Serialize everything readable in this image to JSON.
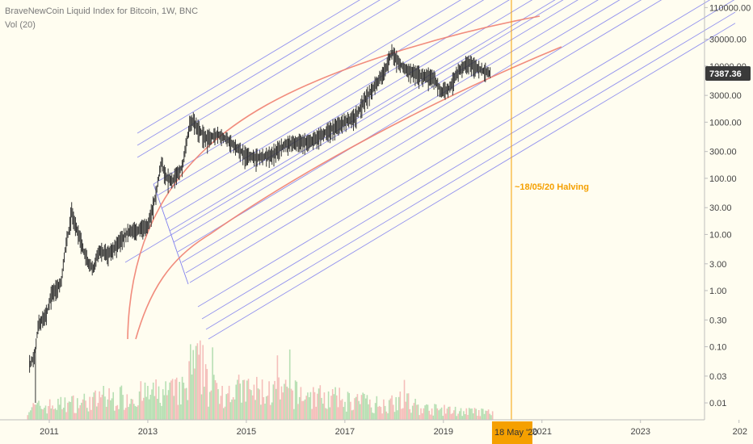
{
  "header": {
    "title": "BraveNewCoin Liquid Index for Bitcoin, 1W, BNC",
    "volume_label": "Vol (20)"
  },
  "colors": {
    "background": "#fffdf0",
    "fan_line": "#8080ee",
    "arc": "#f08070",
    "halving_line": "#f5a000",
    "price_tag_bg": "#3a3a3a",
    "date_tag_bg": "#f5a000",
    "volume_up": "#9fd49f",
    "volume_down": "#f2a8a8",
    "candle": "#333333"
  },
  "chart_data": {
    "type": "line",
    "title": "BraveNewCoin Liquid Index for Bitcoin, 1W, BNC",
    "y_scale": "log",
    "ylim": [
      0.005,
      150000
    ],
    "xlim": [
      2010.0,
      2024.3
    ],
    "y_ticks": [
      "110000.00",
      "30000.00",
      "10000.00",
      "3000.00",
      "1000.00",
      "300.00",
      "100.00",
      "30.00",
      "10.00",
      "3.00",
      "1.00",
      "0.30",
      "0.10",
      "0.03",
      "0.01"
    ],
    "x_ticks": [
      "2011",
      "2013",
      "2015",
      "2017",
      "2019",
      "2021",
      "2023",
      "202"
    ],
    "last_price": "7387.36",
    "series": [
      {
        "x": [
          2010.55,
          2010.62,
          2010.7,
          2010.78,
          2010.86,
          2010.95,
          2011.05,
          2011.15,
          2011.25,
          2011.33,
          2011.42,
          2011.45,
          2011.5,
          2011.6,
          2011.7,
          2011.8,
          2011.9,
          2012.0,
          2012.2,
          2012.4,
          2012.6,
          2012.8,
          2013.0,
          2013.15,
          2013.28,
          2013.35,
          2013.5,
          2013.7,
          2013.85,
          2013.92,
          2014.0,
          2014.2,
          2014.4,
          2014.6,
          2014.8,
          2015.0,
          2015.2,
          2015.5,
          2015.8,
          2016.0,
          2016.3,
          2016.6,
          2016.9,
          2017.0,
          2017.2,
          2017.4,
          2017.6,
          2017.8,
          2017.96,
          2018.1,
          2018.3,
          2018.6,
          2018.8,
          2018.95,
          2019.1,
          2019.3,
          2019.5,
          2019.6,
          2019.75,
          2019.9,
          2020.0
        ],
        "y": [
          0.06,
          0.05,
          0.07,
          0.25,
          0.3,
          0.4,
          0.9,
          1.1,
          1.5,
          6,
          15,
          28,
          16,
          10,
          5,
          3,
          2.5,
          5,
          4.5,
          7,
          11,
          12,
          14,
          45,
          200,
          110,
          90,
          160,
          900,
          1100,
          800,
          500,
          600,
          500,
          350,
          250,
          230,
          260,
          400,
          430,
          450,
          650,
          900,
          1000,
          1200,
          2500,
          4300,
          8000,
          18000,
          11000,
          8000,
          6500,
          6300,
          3500,
          3800,
          8000,
          11500,
          10000,
          8500,
          7500,
          7387
        ]
      }
    ],
    "annotations": [
      {
        "label": "~18/05/20 Halving",
        "x_label": "18 May '20"
      }
    ]
  }
}
